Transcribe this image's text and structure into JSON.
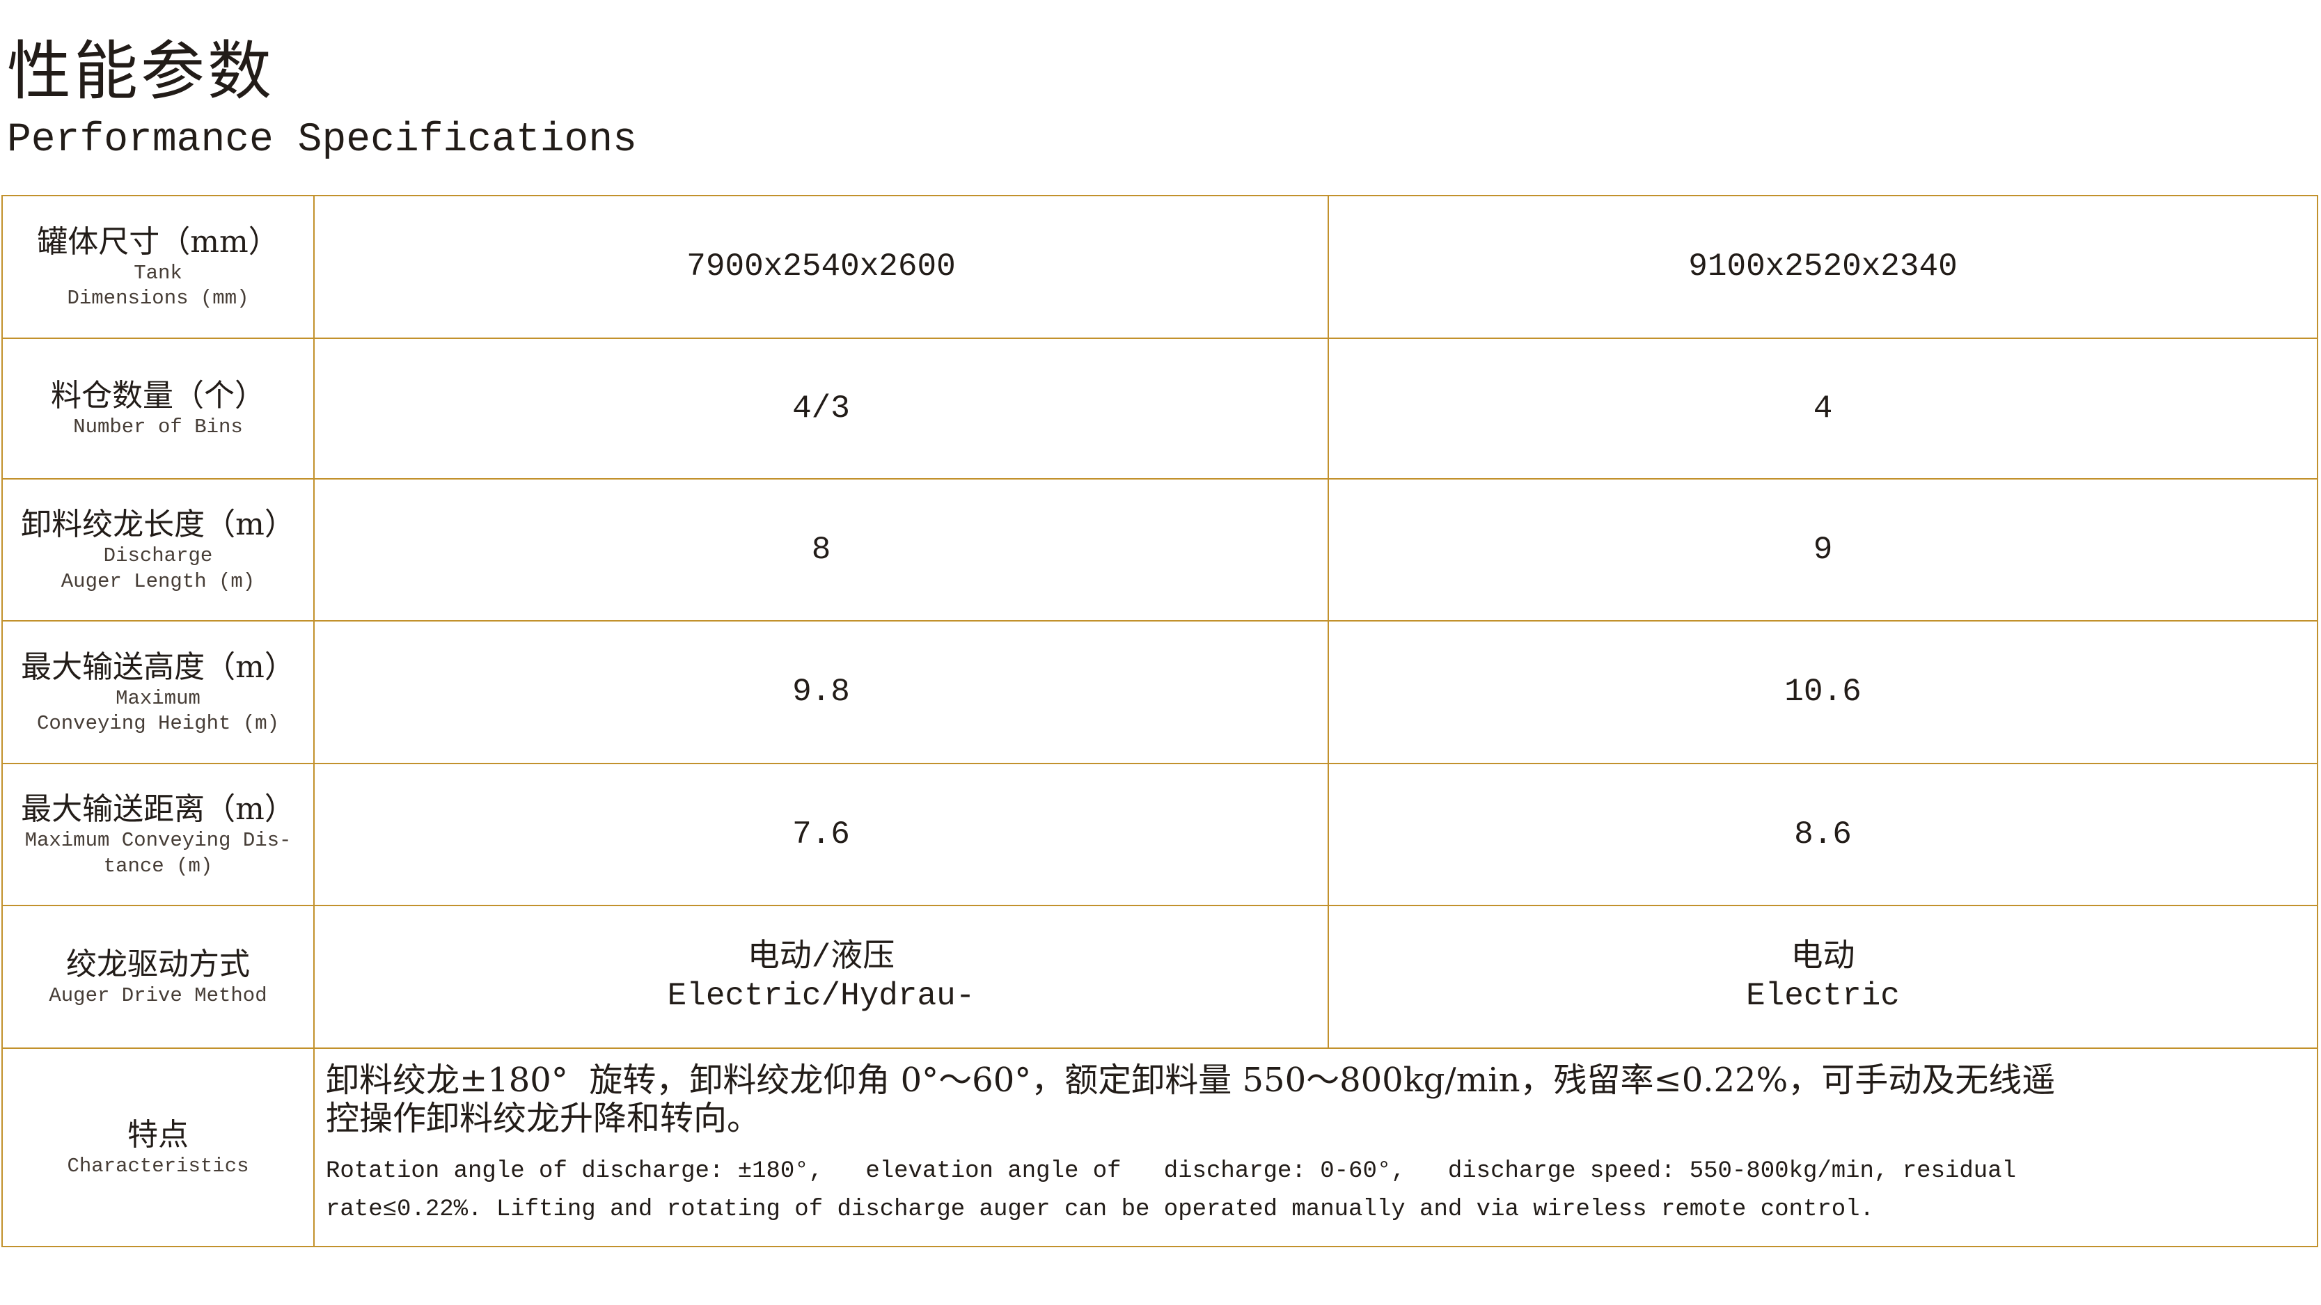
{
  "page": {
    "title_zh": "性能参数",
    "title_en": "Performance Specifications"
  },
  "colors": {
    "border_gold": "#c2912c",
    "text_ink": "#221c18",
    "text_sub": "#463d36"
  },
  "table": {
    "rows": [
      {
        "label_zh": "罐体尺寸（mm）",
        "label_en": [
          "Tank",
          "Dimensions (mm)"
        ],
        "col1": [
          "7900x2540x2600"
        ],
        "col2": [
          "9100x2520x2340"
        ]
      },
      {
        "label_zh": "料仓数量（个）",
        "label_en": [
          "Number of Bins"
        ],
        "col1": [
          "4/3"
        ],
        "col2": [
          "4"
        ]
      },
      {
        "label_zh": "卸料绞龙长度（m）",
        "label_en": [
          "Discharge",
          "Auger Length (m)"
        ],
        "col1": [
          "8"
        ],
        "col2": [
          "9"
        ]
      },
      {
        "label_zh": "最大输送高度（m）",
        "label_en": [
          "Maximum",
          "Conveying Height (m)"
        ],
        "col1": [
          "9.8"
        ],
        "col2": [
          "10.6"
        ]
      },
      {
        "label_zh": "最大输送距离（m）",
        "label_en": [
          "Maximum Conveying Dis-",
          "tance (m)"
        ],
        "col1": [
          "7.6"
        ],
        "col2": [
          "8.6"
        ]
      },
      {
        "label_zh": "绞龙驱动方式",
        "label_en": [
          "Auger Drive Method"
        ],
        "col1": [
          "电动/液压",
          "Electric/Hydrau-"
        ],
        "col2": [
          "电动",
          "Electric"
        ]
      }
    ],
    "characteristics": {
      "label_zh": "特点",
      "label_en": [
        "Characteristics"
      ],
      "zh_lines": [
        "卸料绞龙±180°  旋转，卸料绞龙仰角 0°～60°，额定卸料量 550～800kg/min，残留率≤0.22%，可手动及无线遥",
        "控操作卸料绞龙升降和转向。"
      ],
      "en_lines": [
        "Rotation angle of discharge: ±180°,   elevation angle of   discharge: 0-60°,   discharge speed: 550-800kg/min, residual",
        "rate≤0.22%. Lifting and rotating of discharge auger can be operated manually and via wireless remote control."
      ]
    }
  }
}
